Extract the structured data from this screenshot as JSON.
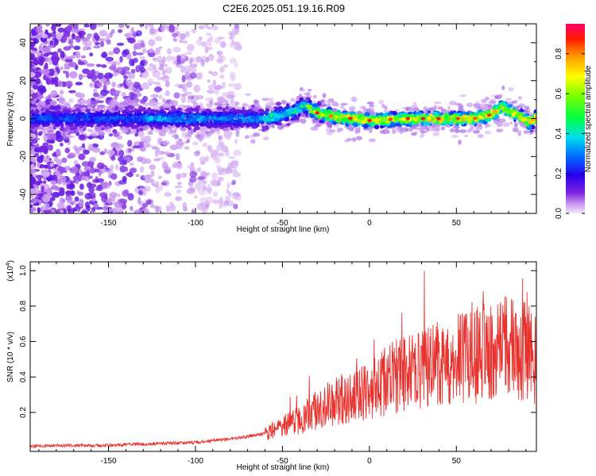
{
  "title": "C2E6.2025.051.19.16.R09",
  "chart_data": [
    {
      "type": "heatmap",
      "xlabel": "Height of straight line (km)",
      "ylabel": "Frequency (Hz)",
      "xlim": [
        -195,
        96
      ],
      "ylim": [
        -50,
        50
      ],
      "xticks": [
        -150,
        -100,
        -50,
        0,
        50
      ],
      "yticks": [
        -40,
        -20,
        0,
        20,
        40
      ],
      "ridge_x": [
        -195,
        -150,
        -100,
        -60,
        -45,
        -38,
        -30,
        -20,
        0,
        20,
        40,
        60,
        70,
        76,
        85,
        92,
        96
      ],
      "ridge_y": [
        0,
        0,
        0,
        0,
        3,
        7,
        3,
        1,
        -1,
        0,
        0,
        0,
        2,
        6,
        2,
        -2,
        1
      ],
      "colorbar": {
        "label": "Normalized spectral amplitude",
        "range": [
          0,
          0.95
        ],
        "ticks": [
          0.0,
          0.2,
          0.4,
          0.6,
          0.8
        ]
      }
    },
    {
      "type": "line",
      "xlabel": "Height of straight line (km)",
      "ylabel": "SNR (10 * v/v)",
      "scale_label": "(x10",
      "scale_exp": "4",
      "xlim": [
        -195,
        96
      ],
      "ylim": [
        -0.02,
        1.05
      ],
      "xticks": [
        -150,
        -100,
        -50,
        0,
        50
      ],
      "yticks": [
        0.2,
        0.4,
        0.6,
        0.8,
        1.0
      ],
      "ytick_labels": [
        "0.2",
        "0.4",
        "0.6",
        "0.8",
        "1.0"
      ],
      "series": [
        {
          "color": "#e8322e",
          "x": [
            -195,
            -150,
            -100,
            -80,
            -60,
            -50,
            -40,
            -30,
            -20,
            -10,
            0,
            10,
            20,
            30,
            40,
            50,
            60,
            70,
            75,
            80,
            90,
            96
          ],
          "y": [
            0.01,
            0.015,
            0.03,
            0.05,
            0.08,
            0.12,
            0.16,
            0.22,
            0.26,
            0.3,
            0.32,
            0.38,
            0.42,
            0.45,
            0.47,
            0.5,
            0.52,
            0.55,
            0.58,
            0.56,
            0.54,
            0.5
          ]
        }
      ]
    }
  ]
}
